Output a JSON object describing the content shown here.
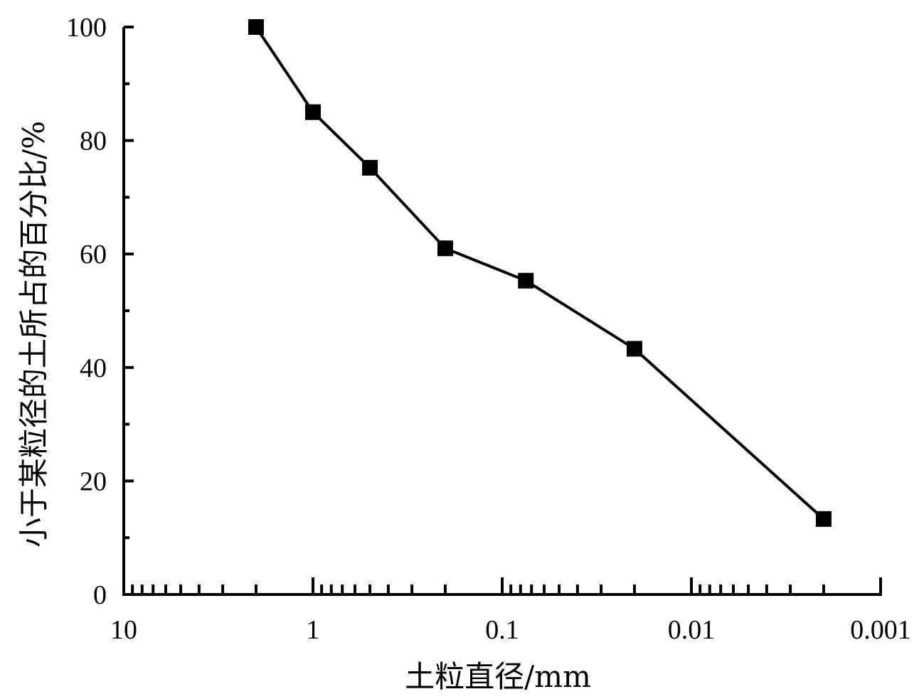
{
  "chart_data": {
    "type": "line",
    "title": "",
    "xlabel": "土粒直径/mm",
    "ylabel": "小于某粒径的土所占的百分比/%",
    "x_scale": "log",
    "x_reversed": true,
    "xlim": [
      10,
      0.001
    ],
    "ylim": [
      0,
      100
    ],
    "x_ticks": [
      10,
      1,
      0.1,
      0.01,
      0.001
    ],
    "x_tick_labels": [
      "10",
      "1",
      "0.1",
      "0.01",
      "0.001"
    ],
    "y_ticks": [
      0,
      20,
      40,
      60,
      80,
      100
    ],
    "y_tick_labels": [
      "0",
      "20",
      "40",
      "60",
      "80",
      "100"
    ],
    "grid": false,
    "legend": "none",
    "marker": "square",
    "line_color": "#000000",
    "series": [
      {
        "x": [
          2,
          1,
          0.5,
          0.2,
          0.075,
          0.02,
          0.002
        ],
        "y": [
          100,
          85,
          75.2,
          61,
          55.3,
          43.3,
          13.3
        ]
      }
    ]
  }
}
